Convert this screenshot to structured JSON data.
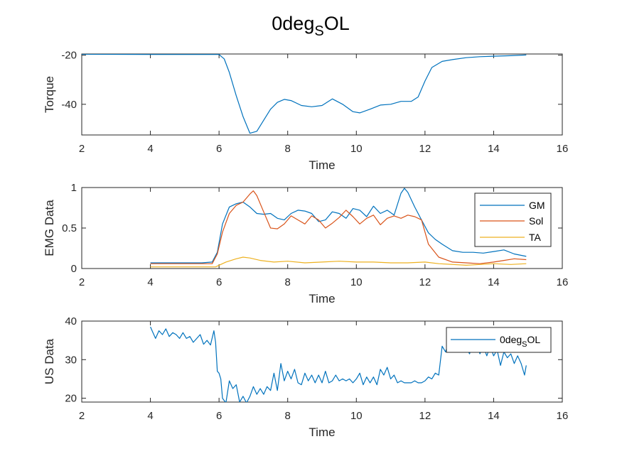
{
  "figure": {
    "title_main": "0deg",
    "title_sub": "S",
    "title_tail": "OL"
  },
  "chart_data": [
    {
      "type": "line",
      "xlabel": "Time",
      "ylabel": "Torque",
      "xlim": [
        2,
        16
      ],
      "ylim": [
        -52.5,
        -19.5
      ],
      "xticks": [
        2,
        4,
        6,
        8,
        10,
        12,
        14,
        16
      ],
      "yticks": [
        -20,
        -40
      ],
      "grid": false,
      "legend": false,
      "series": [
        {
          "color": "#0072BD",
          "x": [
            2.0,
            4.0,
            5.0,
            5.6,
            6.0,
            6.15,
            6.3,
            6.5,
            6.7,
            6.9,
            7.1,
            7.3,
            7.5,
            7.7,
            7.9,
            8.1,
            8.4,
            8.7,
            9.0,
            9.3,
            9.6,
            9.9,
            10.1,
            10.4,
            10.7,
            11.0,
            11.3,
            11.6,
            11.8,
            12.0,
            12.2,
            12.5,
            12.8,
            13.2,
            13.6,
            14.0,
            14.5,
            14.95
          ],
          "y": [
            -19.6,
            -19.7,
            -19.7,
            -19.7,
            -19.7,
            -21.5,
            -27.0,
            -36.5,
            -45.0,
            -51.8,
            -51.0,
            -46.5,
            -42.0,
            -39.2,
            -38.0,
            -38.5,
            -40.5,
            -41.0,
            -40.5,
            -37.8,
            -40.0,
            -43.0,
            -43.5,
            -42.0,
            -40.3,
            -40.0,
            -38.8,
            -38.8,
            -37.0,
            -30.5,
            -25.0,
            -22.5,
            -21.8,
            -21.0,
            -20.6,
            -20.4,
            -20.2,
            -19.9
          ]
        }
      ]
    },
    {
      "type": "line",
      "xlabel": "Time",
      "ylabel": "EMG Data",
      "xlim": [
        2,
        16
      ],
      "ylim": [
        0,
        1
      ],
      "xticks": [
        2,
        4,
        6,
        8,
        10,
        12,
        14,
        16
      ],
      "yticks": [
        0,
        0.5,
        1
      ],
      "grid": false,
      "legend": true,
      "legend_location": "top-right",
      "series": [
        {
          "name": "GM",
          "color": "#0072BD",
          "x": [
            4.0,
            4.5,
            5.0,
            5.5,
            5.8,
            5.95,
            6.1,
            6.3,
            6.5,
            6.7,
            6.9,
            7.1,
            7.3,
            7.5,
            7.7,
            7.9,
            8.1,
            8.3,
            8.5,
            8.7,
            8.9,
            9.1,
            9.3,
            9.5,
            9.7,
            9.9,
            10.1,
            10.3,
            10.5,
            10.7,
            10.9,
            11.1,
            11.3,
            11.4,
            11.5,
            11.7,
            11.9,
            12.1,
            12.3,
            12.5,
            12.8,
            13.1,
            13.4,
            13.7,
            14.0,
            14.3,
            14.6,
            14.95
          ],
          "y": [
            0.07,
            0.07,
            0.07,
            0.07,
            0.08,
            0.2,
            0.55,
            0.76,
            0.8,
            0.82,
            0.76,
            0.68,
            0.67,
            0.68,
            0.62,
            0.6,
            0.68,
            0.72,
            0.71,
            0.68,
            0.58,
            0.6,
            0.7,
            0.68,
            0.62,
            0.74,
            0.72,
            0.64,
            0.77,
            0.68,
            0.72,
            0.66,
            0.93,
            0.99,
            0.94,
            0.76,
            0.6,
            0.44,
            0.36,
            0.3,
            0.22,
            0.2,
            0.2,
            0.19,
            0.21,
            0.23,
            0.18,
            0.15
          ]
        },
        {
          "name": "Sol",
          "color": "#D95319",
          "x": [
            4.0,
            4.5,
            5.0,
            5.5,
            5.8,
            5.95,
            6.1,
            6.3,
            6.5,
            6.7,
            6.9,
            7.0,
            7.1,
            7.3,
            7.5,
            7.7,
            7.9,
            8.1,
            8.3,
            8.5,
            8.7,
            8.9,
            9.1,
            9.3,
            9.5,
            9.7,
            9.9,
            10.1,
            10.3,
            10.5,
            10.7,
            10.9,
            11.1,
            11.3,
            11.5,
            11.7,
            11.9,
            12.1,
            12.4,
            12.8,
            13.2,
            13.6,
            14.0,
            14.3,
            14.6,
            14.95
          ],
          "y": [
            0.06,
            0.06,
            0.06,
            0.06,
            0.06,
            0.18,
            0.45,
            0.68,
            0.78,
            0.82,
            0.92,
            0.96,
            0.9,
            0.7,
            0.5,
            0.49,
            0.55,
            0.65,
            0.6,
            0.55,
            0.65,
            0.6,
            0.5,
            0.56,
            0.63,
            0.72,
            0.64,
            0.55,
            0.62,
            0.66,
            0.54,
            0.62,
            0.65,
            0.62,
            0.66,
            0.64,
            0.6,
            0.3,
            0.14,
            0.08,
            0.07,
            0.06,
            0.08,
            0.1,
            0.12,
            0.11
          ]
        },
        {
          "name": "TA",
          "color": "#EDB120",
          "x": [
            4.0,
            5.0,
            5.9,
            6.2,
            6.5,
            6.7,
            6.9,
            7.2,
            7.6,
            8.0,
            8.5,
            9.0,
            9.5,
            10.0,
            10.5,
            11.0,
            11.5,
            12.0,
            12.4,
            12.8,
            13.2,
            13.6,
            14.0,
            14.5,
            14.95
          ],
          "y": [
            0.02,
            0.02,
            0.02,
            0.08,
            0.12,
            0.14,
            0.13,
            0.1,
            0.08,
            0.09,
            0.07,
            0.08,
            0.09,
            0.08,
            0.08,
            0.07,
            0.07,
            0.08,
            0.06,
            0.05,
            0.04,
            0.05,
            0.06,
            0.05,
            0.06
          ]
        }
      ]
    },
    {
      "type": "line",
      "xlabel": "Time",
      "ylabel": "US Data",
      "xlim": [
        2,
        16
      ],
      "ylim": [
        19,
        40
      ],
      "xticks": [
        2,
        4,
        6,
        8,
        10,
        12,
        14,
        16
      ],
      "yticks": [
        20,
        30,
        40
      ],
      "grid": false,
      "legend": true,
      "legend_location": "top-right",
      "series": [
        {
          "name_main": "0deg",
          "name_sub": "S",
          "name_tail": "OL",
          "color": "#0072BD",
          "x": [
            4.0,
            4.05,
            4.15,
            4.25,
            4.35,
            4.45,
            4.55,
            4.65,
            4.75,
            4.85,
            4.95,
            5.05,
            5.15,
            5.25,
            5.35,
            5.45,
            5.55,
            5.65,
            5.75,
            5.85,
            5.9,
            5.95,
            6.0,
            6.05,
            6.1,
            6.2,
            6.3,
            6.4,
            6.5,
            6.6,
            6.7,
            6.8,
            6.9,
            7.0,
            7.1,
            7.2,
            7.3,
            7.4,
            7.5,
            7.6,
            7.7,
            7.8,
            7.9,
            8.0,
            8.1,
            8.2,
            8.3,
            8.4,
            8.5,
            8.6,
            8.7,
            8.8,
            8.9,
            9.0,
            9.1,
            9.2,
            9.3,
            9.4,
            9.5,
            9.6,
            9.7,
            9.8,
            9.9,
            10.0,
            10.1,
            10.2,
            10.3,
            10.4,
            10.5,
            10.6,
            10.7,
            10.8,
            10.9,
            11.0,
            11.1,
            11.2,
            11.3,
            11.4,
            11.5,
            11.6,
            11.7,
            11.8,
            11.9,
            12.0,
            12.1,
            12.2,
            12.3,
            12.4,
            12.5,
            12.6,
            12.7,
            12.8,
            12.9,
            13.0,
            13.1,
            13.2,
            13.3,
            13.4,
            13.5,
            13.6,
            13.7,
            13.8,
            13.9,
            14.0,
            14.1,
            14.2,
            14.3,
            14.4,
            14.5,
            14.6,
            14.7,
            14.8,
            14.9,
            14.95
          ],
          "y": [
            38.5,
            37.5,
            35.5,
            37.5,
            36.5,
            38.0,
            36.0,
            37.0,
            36.5,
            35.5,
            37.0,
            35.5,
            36.0,
            34.5,
            35.5,
            36.5,
            34.0,
            35.0,
            33.8,
            37.5,
            34.5,
            27.0,
            26.5,
            25.0,
            20.0,
            18.8,
            24.5,
            22.5,
            23.5,
            19.0,
            20.5,
            18.8,
            20.5,
            23.0,
            21.0,
            22.5,
            21.0,
            23.0,
            22.0,
            26.5,
            22.0,
            29.0,
            24.5,
            27.0,
            25.0,
            27.5,
            24.0,
            23.5,
            26.5,
            24.5,
            26.0,
            24.0,
            26.0,
            24.0,
            27.0,
            24.0,
            24.5,
            26.0,
            24.5,
            25.0,
            24.5,
            25.0,
            24.0,
            25.0,
            26.5,
            23.5,
            25.5,
            24.0,
            25.5,
            23.5,
            27.5,
            26.0,
            28.0,
            25.0,
            26.0,
            24.0,
            24.5,
            24.0,
            24.0,
            24.0,
            24.5,
            24.0,
            24.0,
            24.5,
            25.5,
            25.0,
            26.5,
            26.0,
            33.5,
            32.0,
            35.0,
            37.0,
            34.5,
            36.5,
            35.0,
            33.0,
            31.5,
            35.0,
            34.0,
            31.5,
            33.5,
            31.0,
            33.5,
            31.0,
            32.5,
            28.5,
            32.0,
            30.5,
            31.5,
            29.0,
            31.0,
            29.0,
            26.0,
            28.5
          ]
        }
      ]
    }
  ]
}
